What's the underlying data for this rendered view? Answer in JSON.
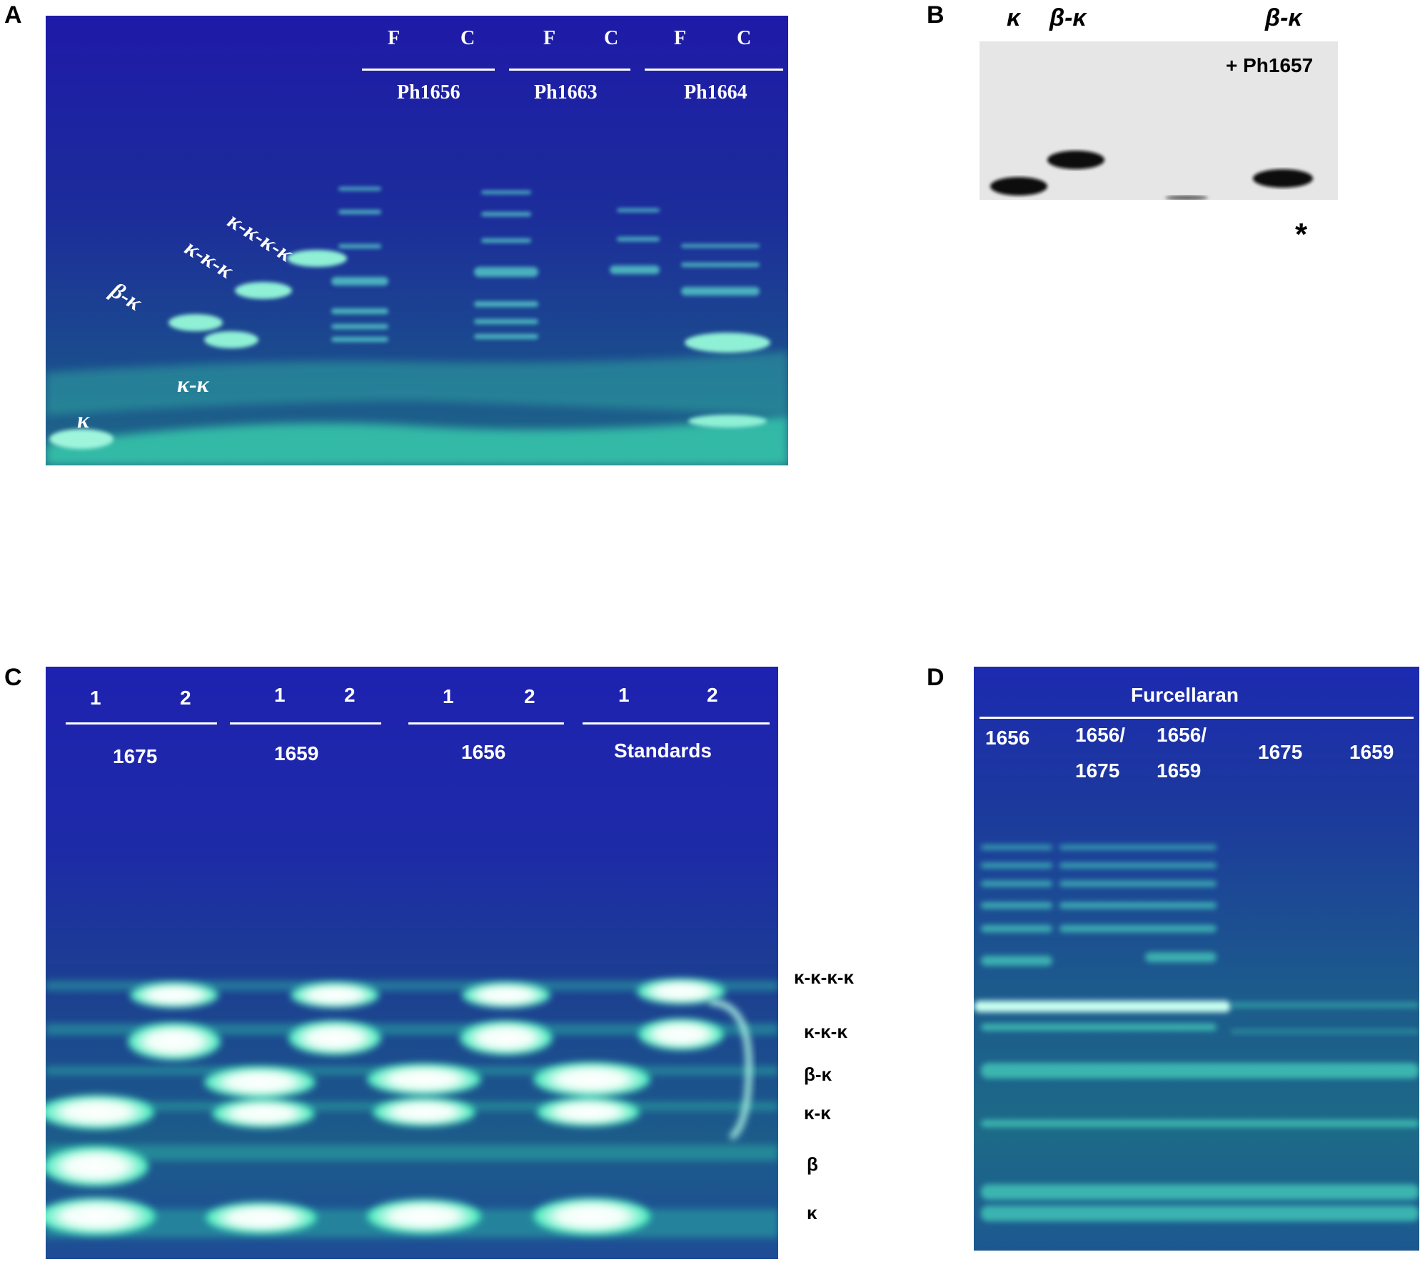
{
  "panels": {
    "A": {
      "letter": "A",
      "lane_letters": [
        "F",
        "C",
        "F",
        "C",
        "F",
        "C"
      ],
      "groups": [
        "Ph1656",
        "Ph1663",
        "Ph1664"
      ],
      "band_labels": [
        "κ-κ-κ-κ",
        "κ-κ-κ",
        "β-κ",
        "κ-κ",
        "κ"
      ]
    },
    "B": {
      "letter": "B",
      "lanes": [
        "κ",
        "β-κ",
        "β-κ"
      ],
      "treatment": "+ Ph1657",
      "asterisk": "*"
    },
    "C": {
      "letter": "C",
      "lane_numbers": [
        "1",
        "2",
        "1",
        "2",
        "1",
        "2",
        "1",
        "2"
      ],
      "groups": [
        "1675",
        "1659",
        "1656",
        "Standards"
      ],
      "band_labels": [
        "κ-κ-κ-κ",
        "κ-κ-κ",
        "β-κ",
        "κ-κ",
        "β",
        "κ"
      ]
    },
    "D": {
      "letter": "D",
      "title": "Furcellaran",
      "lanes": [
        {
          "line1": "1656",
          "line2": ""
        },
        {
          "line1": "1656/",
          "line2": "1675"
        },
        {
          "line1": "1656/",
          "line2": "1659"
        },
        {
          "line1": "1675",
          "line2": ""
        },
        {
          "line1": "1659",
          "line2": ""
        }
      ]
    }
  },
  "colors": {
    "gel_bg": "#1a1f9a",
    "band": "#3af0c0",
    "band_core": "#eafff8"
  }
}
